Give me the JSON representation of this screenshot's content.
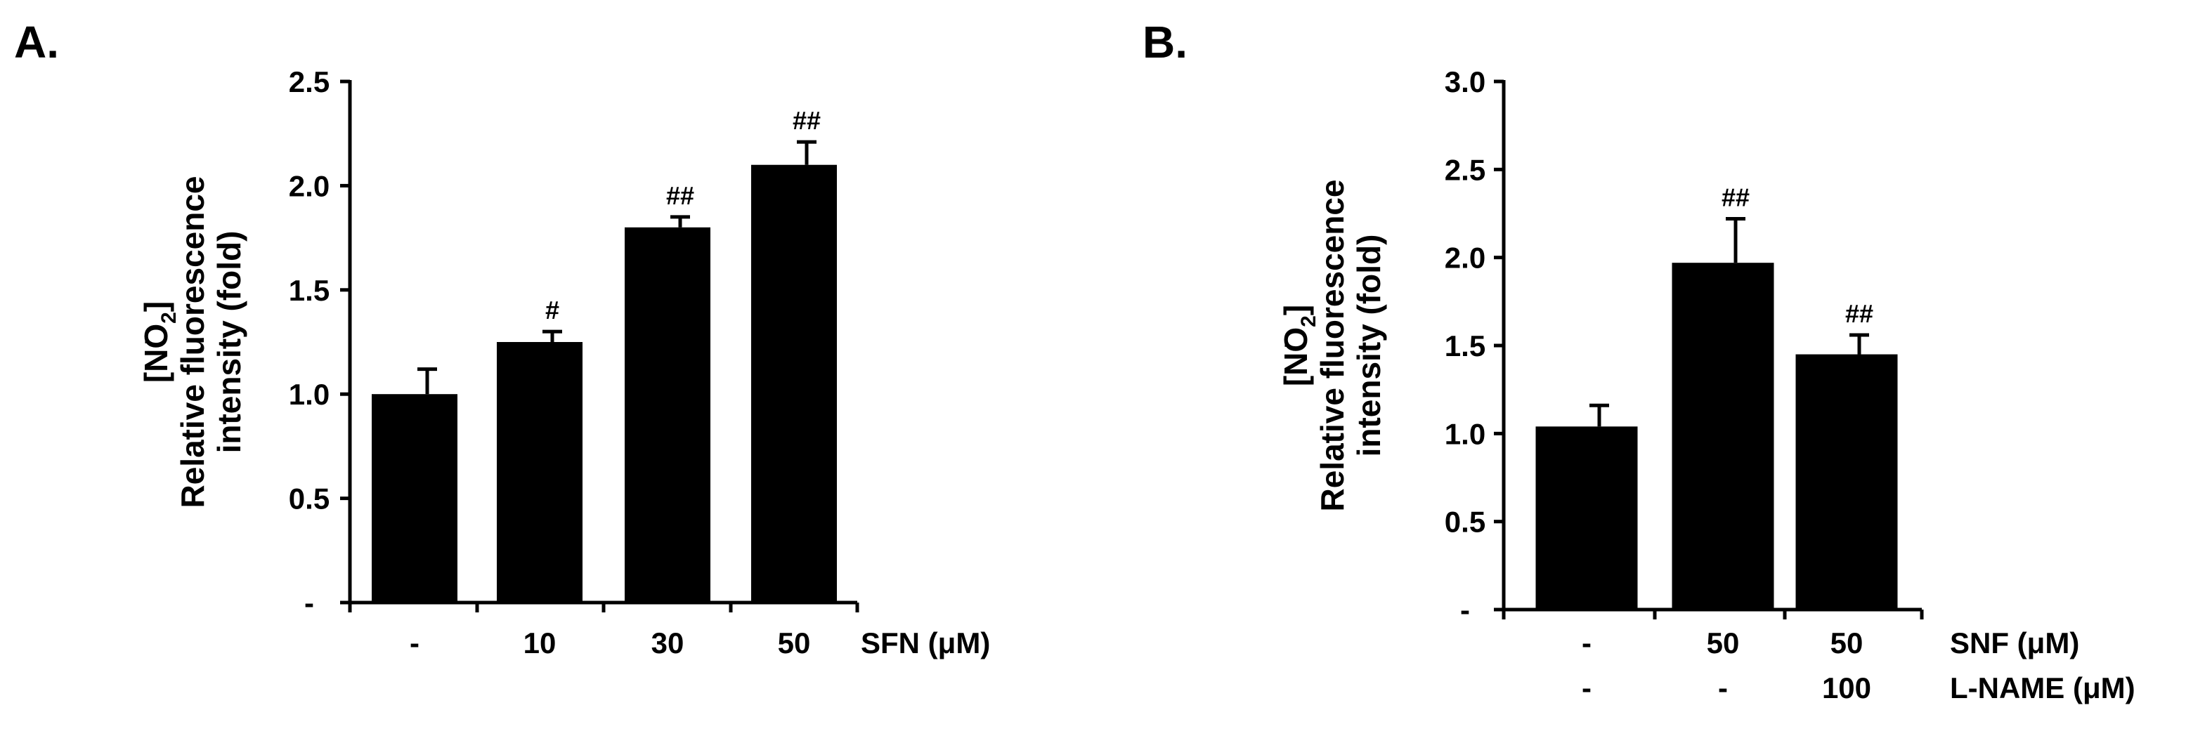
{
  "chart_data": [
    {
      "type": "bar",
      "panel_label": "A.",
      "ylabel_lines": [
        "[NO",
        "2",
        "]"
      ],
      "ylabel_line2": "Relative fluorescence",
      "ylabel_line3": "intensity (fold)",
      "ylim": [
        0,
        2.5
      ],
      "yticks": [
        {
          "value": 0,
          "label": "-"
        },
        {
          "value": 0.5,
          "label": "0.5"
        },
        {
          "value": 1.0,
          "label": "1.0"
        },
        {
          "value": 1.5,
          "label": "1.5"
        },
        {
          "value": 2.0,
          "label": "2.0"
        },
        {
          "value": 2.5,
          "label": "2.5"
        }
      ],
      "categories": [
        "-",
        "10",
        "30",
        "50"
      ],
      "category_rows": [
        {
          "labels": [
            "-",
            "10",
            "30",
            "50"
          ],
          "axis_label": "SFN (μM)"
        }
      ],
      "values": [
        1.0,
        1.25,
        1.8,
        2.1
      ],
      "errors": [
        0.12,
        0.05,
        0.05,
        0.11
      ],
      "annotations": [
        "",
        "#",
        "##",
        "##"
      ],
      "grid": false,
      "bar_color": "#000000"
    },
    {
      "type": "bar",
      "panel_label": "B.",
      "ylabel_lines": [
        "[NO",
        "2",
        "]"
      ],
      "ylabel_line2": "Relative fluorescence",
      "ylabel_line3": "intensity (fold)",
      "ylim": [
        0,
        3.0
      ],
      "yticks": [
        {
          "value": 0,
          "label": "-"
        },
        {
          "value": 0.5,
          "label": "0.5"
        },
        {
          "value": 1.0,
          "label": "1.0"
        },
        {
          "value": 1.5,
          "label": "1.5"
        },
        {
          "value": 2.0,
          "label": "2.0"
        },
        {
          "value": 2.5,
          "label": "2.5"
        },
        {
          "value": 3.0,
          "label": "3.0"
        }
      ],
      "categories": [
        "-",
        "50",
        "50"
      ],
      "category_rows": [
        {
          "labels": [
            "-",
            "50",
            "50"
          ],
          "axis_label": "SNF (μM)"
        },
        {
          "labels": [
            "-",
            "-",
            "100"
          ],
          "axis_label": "L-NAME (μM)"
        }
      ],
      "values": [
        1.04,
        1.97,
        1.45
      ],
      "errors": [
        0.12,
        0.25,
        0.11
      ],
      "annotations": [
        "",
        "##",
        "##"
      ],
      "grid": false,
      "bar_color": "#000000"
    }
  ]
}
